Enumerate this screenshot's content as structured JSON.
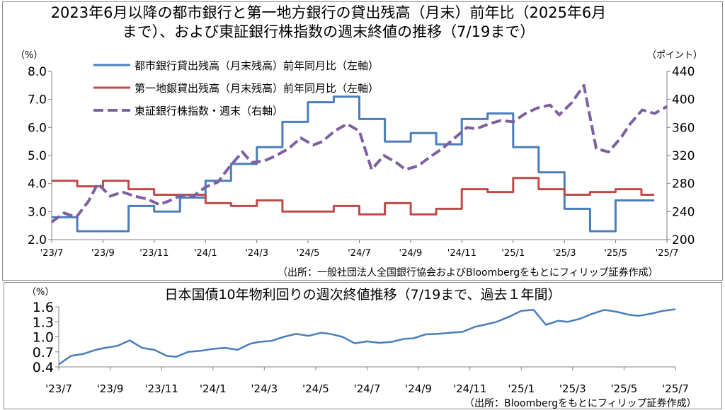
{
  "top": {
    "title_line1": "2023年6月以降の都市銀行と第一地方銀行の貸出残高（月末）前年比（2025年6月",
    "title_line2": "まで）、および東証銀行株指数の週末終値の推移（7/19まで）",
    "left_unit": "（%）",
    "right_unit": "（ポイント）",
    "source": "（出所：一般社団法人全国銀行協会およびBloombergをもとにフィリップ証券作成）"
  },
  "bottom": {
    "title": "日本国債10年物利回りの週次終値推移（7/19まで、過去１年間）",
    "left_unit": "（%）",
    "source": "（出所：Bloombergをもとにフィリップ証券作成）"
  },
  "chart_data": [
    {
      "type": "line",
      "title": "2023年6月以降の都市銀行と第一地方銀行の貸出残高（月末）前年比（2025年6月まで）、および東証銀行株指数の週末終値の推移（7/19まで）",
      "x_tick_labels": [
        "'23/7",
        "'23/9",
        "'23/11",
        "'24/1",
        "'24/3",
        "'24/5",
        "'24/7",
        "'24/9",
        "'24/11",
        "'25/1",
        "'25/3",
        "'25/5",
        "'25/7"
      ],
      "x_range": [
        2023.5,
        2025.5
      ],
      "y_left": {
        "ticks": [
          "2.0",
          "3.0",
          "4.0",
          "5.0",
          "6.0",
          "7.0",
          "8.0"
        ],
        "ylim": [
          2.0,
          8.0
        ]
      },
      "y_right": {
        "ticks": [
          "200",
          "240",
          "280",
          "320",
          "360",
          "400",
          "440"
        ],
        "ylim": [
          200,
          440
        ]
      },
      "grid": false,
      "legend_position": "top-left",
      "series": [
        {
          "name": "都市銀行貸出残高（月末残高）前年同月比（左軸）",
          "axis": "left",
          "color": "#4a7ebb",
          "style": "step",
          "x": [
            2023.5,
            2023.583,
            2023.667,
            2023.75,
            2023.833,
            2023.917,
            2024.0,
            2024.083,
            2024.167,
            2024.25,
            2024.333,
            2024.417,
            2024.5,
            2024.583,
            2024.667,
            2024.75,
            2024.833,
            2024.917,
            2025.0,
            2025.083,
            2025.167,
            2025.25,
            2025.333,
            2025.417
          ],
          "values": [
            2.8,
            2.3,
            2.3,
            3.2,
            3.0,
            3.5,
            4.1,
            4.7,
            5.3,
            6.2,
            6.9,
            7.1,
            6.3,
            5.5,
            5.8,
            5.4,
            6.3,
            6.5,
            5.3,
            4.4,
            3.1,
            2.3,
            3.4,
            3.4
          ]
        },
        {
          "name": "第一地銀貸出残高（月末残高）前年同月比（左軸）",
          "axis": "left",
          "color": "#be4b48",
          "style": "step",
          "x": [
            2023.5,
            2023.583,
            2023.667,
            2023.75,
            2023.833,
            2023.917,
            2024.0,
            2024.083,
            2024.167,
            2024.25,
            2024.333,
            2024.417,
            2024.5,
            2024.583,
            2024.667,
            2024.75,
            2024.833,
            2024.917,
            2025.0,
            2025.083,
            2025.167,
            2025.25,
            2025.333,
            2025.417
          ],
          "values": [
            4.1,
            3.9,
            4.1,
            3.8,
            3.6,
            3.6,
            3.3,
            3.2,
            3.4,
            3.0,
            3.0,
            3.2,
            2.9,
            3.3,
            2.9,
            3.1,
            3.8,
            3.7,
            4.2,
            3.8,
            3.6,
            3.7,
            3.8,
            3.6
          ]
        },
        {
          "name": "東証銀行株指数・週末（右軸）",
          "axis": "right",
          "color": "#7d60a0",
          "style": "dashed",
          "x": [
            2023.5,
            2023.54,
            2023.58,
            2023.62,
            2023.65,
            2023.69,
            2023.73,
            2023.77,
            2023.81,
            2023.85,
            2023.88,
            2023.92,
            2023.96,
            2024.0,
            2024.04,
            2024.08,
            2024.12,
            2024.15,
            2024.19,
            2024.23,
            2024.27,
            2024.31,
            2024.35,
            2024.38,
            2024.42,
            2024.46,
            2024.5,
            2024.54,
            2024.58,
            2024.62,
            2024.65,
            2024.69,
            2024.73,
            2024.77,
            2024.81,
            2024.85,
            2024.88,
            2024.92,
            2024.96,
            2025.0,
            2025.04,
            2025.08,
            2025.12,
            2025.15,
            2025.19,
            2025.23,
            2025.27,
            2025.31,
            2025.35,
            2025.38,
            2025.42,
            2025.46,
            2025.5
          ],
          "values": [
            225,
            238,
            232,
            255,
            280,
            262,
            268,
            262,
            258,
            250,
            255,
            263,
            262,
            275,
            282,
            305,
            325,
            310,
            312,
            320,
            330,
            345,
            335,
            340,
            355,
            365,
            355,
            300,
            320,
            310,
            300,
            305,
            318,
            330,
            345,
            360,
            358,
            365,
            370,
            368,
            380,
            388,
            392,
            378,
            395,
            420,
            330,
            325,
            345,
            365,
            385,
            380,
            390
          ]
        }
      ]
    },
    {
      "type": "line",
      "title": "日本国債10年物利回りの週次終値推移（7/19まで、過去１年間）",
      "x_tick_labels": [
        "'23/7",
        "'23/9",
        "'23/11",
        "'24/1",
        "'24/3",
        "'24/5",
        "'24/7",
        "'24/9",
        "'24/11",
        "'25/1",
        "'25/3",
        "'25/5",
        "'25/7"
      ],
      "y_left": {
        "ticks": [
          "0.4",
          "0.7",
          "1.0",
          "1.3",
          "1.6"
        ],
        "ylim": [
          0.4,
          1.6
        ]
      },
      "grid": false,
      "series": [
        {
          "color": "#4a7ebb",
          "x": [
            2023.5,
            2023.54,
            2023.58,
            2023.62,
            2023.65,
            2023.69,
            2023.73,
            2023.77,
            2023.81,
            2023.85,
            2023.88,
            2023.92,
            2023.96,
            2024.0,
            2024.04,
            2024.08,
            2024.12,
            2024.15,
            2024.19,
            2024.23,
            2024.27,
            2024.31,
            2024.35,
            2024.38,
            2024.42,
            2024.46,
            2024.5,
            2024.54,
            2024.58,
            2024.62,
            2024.65,
            2024.69,
            2024.73,
            2024.77,
            2024.81,
            2024.85,
            2024.88,
            2024.92,
            2024.96,
            2025.0,
            2025.04,
            2025.08,
            2025.12,
            2025.15,
            2025.19,
            2025.23,
            2025.27,
            2025.31,
            2025.35,
            2025.38,
            2025.42,
            2025.46,
            2025.5
          ],
          "values": [
            0.45,
            0.62,
            0.66,
            0.74,
            0.78,
            0.82,
            0.93,
            0.78,
            0.74,
            0.62,
            0.6,
            0.7,
            0.72,
            0.76,
            0.78,
            0.74,
            0.86,
            0.9,
            0.92,
            1.0,
            1.06,
            1.02,
            1.08,
            1.06,
            1.0,
            0.87,
            0.91,
            0.88,
            0.9,
            0.96,
            0.97,
            1.05,
            1.06,
            1.08,
            1.1,
            1.2,
            1.24,
            1.3,
            1.4,
            1.52,
            1.54,
            1.24,
            1.32,
            1.3,
            1.36,
            1.46,
            1.54,
            1.5,
            1.44,
            1.42,
            1.46,
            1.52,
            1.55
          ]
        }
      ]
    }
  ]
}
